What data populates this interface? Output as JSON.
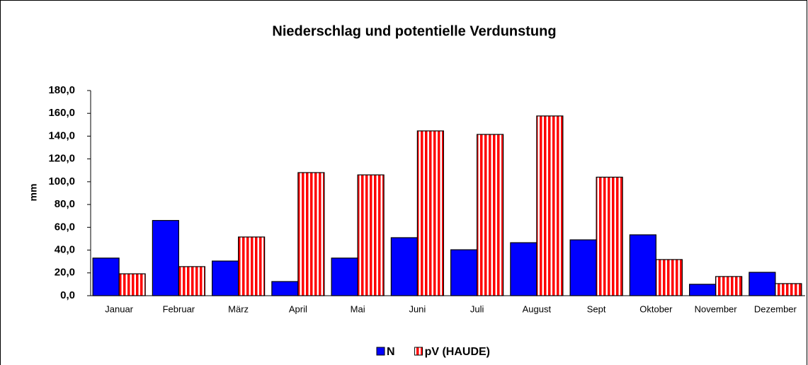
{
  "chart_data": {
    "type": "bar",
    "title": "Niederschlag und potentielle Verdunstung",
    "ylabel": "mm",
    "categories": [
      "Januar",
      "Februar",
      "März",
      "April",
      "Mai",
      "Juni",
      "Juli",
      "August",
      "Sept",
      "Oktober",
      "November",
      "Dezember"
    ],
    "series": [
      {
        "name": "N",
        "color": "#0000ff",
        "pattern": "solid",
        "values": [
          33,
          66,
          30.4,
          12.4,
          33,
          50.9,
          40.3,
          46.5,
          49,
          53.4,
          10,
          20.5
        ]
      },
      {
        "name": "pV (HAUDE)",
        "color": "#ff0000",
        "pattern": "stripes",
        "values": [
          19.2,
          25.5,
          51.5,
          108,
          106,
          144.6,
          141.5,
          157.7,
          104,
          31.7,
          16.8,
          10.6
        ]
      }
    ],
    "ylim": [
      0,
      180
    ],
    "yticks": [
      {
        "value": 0,
        "label": "0,0"
      },
      {
        "value": 20,
        "label": "20,0"
      },
      {
        "value": 40,
        "label": "40,0"
      },
      {
        "value": 60,
        "label": "60,0"
      },
      {
        "value": 80,
        "label": "80,0"
      },
      {
        "value": 100,
        "label": "100,0"
      },
      {
        "value": 120,
        "label": "120,0"
      },
      {
        "value": 140,
        "label": "140,0"
      },
      {
        "value": 160,
        "label": "160,0"
      },
      {
        "value": 180,
        "label": "180,0"
      }
    ],
    "grid": false,
    "legend": "bottom"
  }
}
